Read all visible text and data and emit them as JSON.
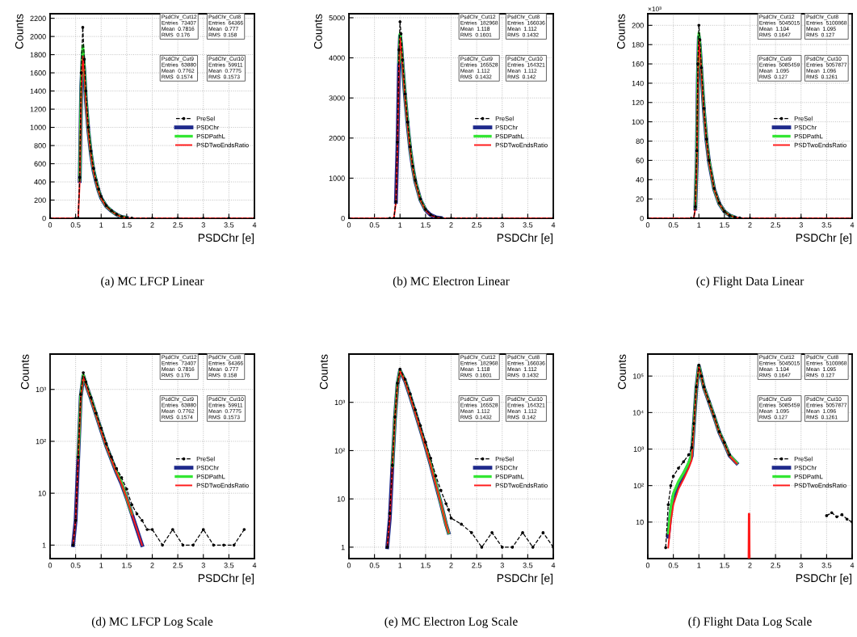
{
  "chart_data": [
    {
      "type": "line",
      "title": "(a) MC LFCP Linear",
      "xlabel": "PSDChr [e]",
      "ylabel": "Counts",
      "xlim": [
        0,
        4
      ],
      "xticks": [
        0,
        0.5,
        1,
        1.5,
        2,
        2.5,
        3,
        3.5,
        4
      ],
      "ylim": [
        0,
        2250
      ],
      "yticks": [
        0,
        200,
        400,
        600,
        800,
        1000,
        1200,
        1400,
        1600,
        1800,
        2000,
        2200
      ],
      "grid": true,
      "legend": "right",
      "annotations": [
        "PsdChr_Cut12\nEntries  73407\nMean  0.7816\nRMS  0.176",
        "PsdChr_Cut8\nEntries  64366\nMean  0.777\nRMS  0.158",
        "PsdChr_Cut9\nEntries  63880\nMean  0.7762\nRMS  0.1574",
        "PsdChr_Cut10\nEntries  59911\nMean  0.7775\nRMS  0.1573"
      ],
      "x": [
        0,
        0.5,
        0.55,
        0.58,
        0.61,
        0.64,
        0.67,
        0.7,
        0.75,
        0.8,
        0.85,
        0.9,
        0.95,
        1.0,
        1.1,
        1.2,
        1.3,
        1.4,
        1.5,
        1.6,
        2,
        2.5,
        3,
        3.5,
        4
      ],
      "series": [
        {
          "name": "PreSel",
          "color": "#000000",
          "marker": "circle",
          "line_style": "dashed",
          "values": [
            0,
            0,
            0,
            450,
            1600,
            2100,
            1750,
            1400,
            1000,
            740,
            550,
            420,
            320,
            240,
            140,
            85,
            45,
            18,
            6,
            1,
            0,
            0,
            0,
            0,
            0
          ]
        },
        {
          "name": "PSDChr",
          "color": "#1f2a8c",
          "values": [
            null,
            null,
            null,
            410,
            1450,
            1820,
            1620,
            1310,
            960,
            705,
            525,
            405,
            302,
            222,
            131,
            81,
            41,
            15,
            5,
            null,
            null,
            null,
            null,
            null,
            null
          ]
        },
        {
          "name": "PSDPathL",
          "color": "#33e633",
          "values": [
            null,
            null,
            null,
            420,
            1500,
            1900,
            1650,
            1330,
            970,
            715,
            530,
            410,
            305,
            225,
            133,
            82,
            42,
            16,
            5,
            null,
            null,
            null,
            null,
            null,
            null
          ]
        },
        {
          "name": "PSDTwoEndsRatio",
          "color": "#ff1a1a",
          "values": [
            0,
            0,
            0,
            400,
            1400,
            1780,
            1600,
            1300,
            950,
            700,
            520,
            400,
            300,
            220,
            130,
            80,
            40,
            15,
            5,
            0,
            0,
            0,
            0,
            0,
            0
          ]
        }
      ]
    },
    {
      "type": "line",
      "title": "(b) MC Electron Linear",
      "xlabel": "PSDChr [e]",
      "ylabel": "Counts",
      "xlim": [
        0,
        4
      ],
      "xticks": [
        0,
        0.5,
        1,
        1.5,
        2,
        2.5,
        3,
        3.5,
        4
      ],
      "ylim": [
        0,
        5100
      ],
      "yticks": [
        0,
        1000,
        2000,
        3000,
        4000,
        5000
      ],
      "grid": true,
      "legend": "right",
      "annotations": [
        "PsdChr_Cut12\nEntries  182968\nMean  1.118\nRMS  0.1601",
        "PsdChr_Cut8\nEntries  166036\nMean  1.112\nRMS  0.1432",
        "PsdChr_Cut9\nEntries  165528\nMean  1.112\nRMS  0.1432",
        "PsdChr_Cut10\nEntries  164321\nMean  1.112\nRMS  0.142"
      ],
      "x": [
        0,
        0.8,
        0.88,
        0.92,
        0.95,
        0.98,
        1.0,
        1.02,
        1.05,
        1.1,
        1.15,
        1.2,
        1.25,
        1.3,
        1.4,
        1.5,
        1.6,
        1.7,
        1.8,
        2,
        3,
        4
      ],
      "series": [
        {
          "name": "PreSel",
          "color": "#000000",
          "marker": "circle",
          "line_style": "dashed",
          "values": [
            0,
            0,
            0,
            420,
            1900,
            4200,
            4900,
            4600,
            3950,
            3100,
            2400,
            1780,
            1300,
            950,
            480,
            220,
            90,
            30,
            8,
            1,
            0,
            0
          ]
        },
        {
          "name": "PSDChr",
          "color": "#1f2a8c",
          "values": [
            null,
            null,
            null,
            405,
            1820,
            3850,
            4550,
            4350,
            3820,
            3020,
            2320,
            1710,
            1260,
            910,
            455,
            205,
            82,
            26,
            5,
            null,
            null,
            null
          ]
        },
        {
          "name": "PSDPathL",
          "color": "#33e633",
          "values": [
            null,
            null,
            null,
            null,
            null,
            3900,
            4600,
            4400,
            3850,
            3050,
            2350,
            1730,
            1270,
            920,
            460,
            210,
            null,
            null,
            null,
            null,
            null,
            null
          ]
        },
        {
          "name": "PSDTwoEndsRatio",
          "color": "#ff1a1a",
          "values": [
            0,
            0,
            0,
            400,
            1800,
            3800,
            4500,
            4300,
            3800,
            3000,
            2300,
            1700,
            1250,
            900,
            450,
            200,
            80,
            25,
            5,
            0,
            0,
            0
          ]
        }
      ]
    },
    {
      "type": "line",
      "title": "(c) Flight Data Linear",
      "xlabel": "PSDChr [e]",
      "ylabel": "Counts",
      "xlim": [
        0,
        4
      ],
      "xticks": [
        0,
        0.5,
        1,
        1.5,
        2,
        2.5,
        3,
        3.5,
        4
      ],
      "ylim": [
        0,
        212
      ],
      "yticks": [
        0,
        20,
        40,
        60,
        80,
        100,
        120,
        140,
        160,
        180,
        200
      ],
      "grid": true,
      "legend": "right",
      "annotations": [
        "PsdChr_Cut12\nEntries  5045015\nMean  1.104\nRMS  0.1647",
        "PsdChr_Cut8\nEntries  5100868\nMean  1.095\nRMS  0.127",
        "PsdChr_Cut9\nEntries  5085459\nMean  1.095\nRMS  0.127",
        "PsdChr_Cut10\nEntries  5057877\nMean  1.096\nRMS  0.1261",
        "×10³"
      ],
      "x": [
        0,
        0.85,
        0.9,
        0.93,
        0.96,
        0.98,
        1.0,
        1.02,
        1.05,
        1.1,
        1.15,
        1.2,
        1.3,
        1.4,
        1.5,
        1.6,
        1.7,
        1.8,
        2,
        3,
        4
      ],
      "series": [
        {
          "name": "PreSel",
          "color": "#000000",
          "marker": "circle",
          "line_style": "dashed",
          "values": [
            0,
            0,
            0,
            12,
            70,
            160,
            200,
            185,
            156,
            114,
            82,
            60,
            31,
            16,
            7,
            3,
            1,
            0.3,
            0,
            0,
            0
          ]
        },
        {
          "name": "PSDChr",
          "color": "#1f2a8c",
          "values": [
            null,
            null,
            null,
            10,
            62,
            145,
            188,
            177,
            151,
            111,
            80,
            58,
            30,
            15,
            7,
            3,
            1,
            null,
            null,
            null,
            null
          ]
        },
        {
          "name": "PSDPathL",
          "color": "#33e633",
          "values": [
            null,
            null,
            null,
            11,
            65,
            150,
            192,
            180,
            153,
            112,
            81,
            59,
            30,
            15,
            7,
            3,
            1,
            null,
            null,
            null,
            null
          ]
        },
        {
          "name": "PSDTwoEndsRatio",
          "color": "#ff1a1a",
          "values": [
            0,
            0,
            0,
            10,
            60,
            140,
            185,
            175,
            150,
            110,
            80,
            58,
            30,
            15,
            7,
            3,
            1,
            0.3,
            0,
            0,
            0
          ]
        }
      ]
    },
    {
      "type": "line",
      "title": "(d) MC LFCP Log Scale",
      "xlabel": "PSDChr [e]",
      "ylabel": "Counts",
      "log": "y",
      "xlim": [
        0,
        4
      ],
      "xticks": [
        0,
        0.5,
        1,
        1.5,
        2,
        2.5,
        3,
        3.5,
        4
      ],
      "ylim": [
        0.55,
        4800
      ],
      "yticks": [
        {
          "value": 1,
          "label": "1"
        },
        {
          "value": 10,
          "label": "10"
        },
        {
          "value": 100,
          "label": "10²"
        },
        {
          "value": 1000,
          "label": "10³"
        }
      ],
      "grid": true,
      "legend": "right",
      "annotations": [
        "PsdChr_Cut12\nEntries  73407\nMean  0.7816\nRMS  0.176",
        "PsdChr_Cut8\nEntries  64366\nMean  0.777\nRMS  0.158",
        "PsdChr_Cut9\nEntries  63880\nMean  0.7762\nRMS  0.1574",
        "PsdChr_Cut10\nEntries  59911\nMean  0.7775\nRMS  0.1573"
      ],
      "x": [
        0.45,
        0.5,
        0.55,
        0.6,
        0.65,
        0.7,
        0.8,
        0.9,
        1.0,
        1.1,
        1.2,
        1.3,
        1.4,
        1.5,
        1.6,
        1.7,
        1.8,
        1.9,
        2.0,
        2.2,
        2.4,
        2.6,
        2.8,
        3.0,
        3.2,
        3.4,
        3.6,
        3.8
      ],
      "series": [
        {
          "name": "PreSel",
          "color": "#000000",
          "marker": "circle",
          "line_style": "dashed",
          "values": [
            1,
            3,
            50,
            800,
            2100,
            1400,
            700,
            350,
            180,
            90,
            50,
            30,
            20,
            12,
            6,
            4,
            3,
            2,
            2,
            1,
            2,
            1,
            1,
            2,
            1,
            1,
            1,
            2
          ]
        },
        {
          "name": "PSDChr",
          "color": "#1f2a8c",
          "values": [
            1,
            3,
            46,
            720,
            1820,
            1270,
            660,
            325,
            162,
            81,
            45,
            25,
            15,
            8,
            4,
            2,
            1,
            null,
            null,
            null,
            null,
            null,
            null,
            null,
            null,
            null,
            null,
            null
          ]
        },
        {
          "name": "PSDPathL",
          "color": "#33e633",
          "values": [
            null,
            null,
            48,
            750,
            1900,
            1300,
            670,
            330,
            165,
            82,
            46,
            26,
            16,
            8,
            4,
            null,
            null,
            null,
            null,
            null,
            null,
            null,
            null,
            null,
            null,
            null,
            null,
            null
          ]
        },
        {
          "name": "PSDTwoEndsRatio",
          "color": "#ff1a1a",
          "values": [
            1,
            3,
            45,
            700,
            1800,
            1250,
            650,
            320,
            160,
            80,
            45,
            25,
            15,
            8,
            4,
            2,
            1,
            null,
            null,
            null,
            null,
            null,
            null,
            null,
            null,
            null,
            null,
            null
          ]
        }
      ]
    },
    {
      "type": "line",
      "title": "(e) MC Electron Log Scale",
      "xlabel": "PSDChr [e]",
      "ylabel": "Counts",
      "log": "y",
      "xlim": [
        0,
        4
      ],
      "xticks": [
        0,
        0.5,
        1,
        1.5,
        2,
        2.5,
        3,
        3.5,
        4
      ],
      "ylim": [
        0.58,
        10000
      ],
      "yticks": [
        {
          "value": 1,
          "label": "1"
        },
        {
          "value": 10,
          "label": "10"
        },
        {
          "value": 100,
          "label": "10²"
        },
        {
          "value": 1000,
          "label": "10³"
        }
      ],
      "grid": true,
      "legend": "right",
      "annotations": [
        "PsdChr_Cut12\nEntries  182968\nMean  1.118\nRMS  0.1601",
        "PsdChr_Cut8\nEntries  166036\nMean  1.112\nRMS  0.1432",
        "PsdChr_Cut9\nEntries  165528\nMean  1.112\nRMS  0.1432",
        "PsdChr_Cut10\nEntries  164321\nMean  1.112\nRMS  0.142"
      ],
      "x": [
        0.75,
        0.8,
        0.85,
        0.9,
        0.95,
        1.0,
        1.1,
        1.2,
        1.3,
        1.4,
        1.5,
        1.6,
        1.7,
        1.8,
        1.9,
        1.95,
        2.0,
        2.2,
        2.4,
        2.6,
        2.8,
        3.0,
        3.2,
        3.4,
        3.6,
        3.8,
        4.0
      ],
      "series": [
        {
          "name": "PreSel",
          "color": "#000000",
          "marker": "circle",
          "line_style": "dashed",
          "values": [
            1,
            5,
            50,
            500,
            2500,
            4900,
            3000,
            1500,
            700,
            330,
            150,
            70,
            30,
            15,
            8,
            6,
            4,
            3,
            2,
            1,
            2,
            1,
            1,
            2,
            1,
            2,
            1
          ]
        },
        {
          "name": "PSDChr",
          "color": "#1f2a8c",
          "values": [
            1,
            4,
            46,
            460,
            2350,
            4550,
            2750,
            1320,
            610,
            275,
            122,
            51,
            20,
            8,
            3,
            2,
            null,
            null,
            null,
            null,
            null,
            null,
            null,
            null,
            null,
            null,
            null
          ]
        },
        {
          "name": "PSDPathL",
          "color": "#33e633",
          "values": [
            null,
            null,
            47,
            470,
            2400,
            4600,
            2800,
            1350,
            620,
            280,
            125,
            52,
            21,
            8,
            3,
            2,
            null,
            null,
            null,
            null,
            null,
            null,
            null,
            null,
            null,
            null,
            null
          ]
        },
        {
          "name": "PSDTwoEndsRatio",
          "color": "#ff1a1a",
          "values": [
            1,
            4,
            45,
            450,
            2300,
            4500,
            2700,
            1300,
            600,
            270,
            120,
            50,
            20,
            8,
            3,
            2,
            null,
            null,
            null,
            null,
            null,
            null,
            null,
            null,
            null,
            null,
            null
          ]
        }
      ]
    },
    {
      "type": "line",
      "title": "(f) Flight Data Log Scale",
      "xlabel": "PSDChr [e]",
      "ylabel": "Counts",
      "log": "y",
      "xlim": [
        0,
        4
      ],
      "xticks": [
        0,
        0.5,
        1,
        1.5,
        2,
        2.5,
        3,
        3.5,
        4
      ],
      "ylim": [
        1,
        400000
      ],
      "yticks": [
        {
          "value": 10,
          "label": "10"
        },
        {
          "value": 100,
          "label": "10²"
        },
        {
          "value": 1000,
          "label": "10³"
        },
        {
          "value": 10000,
          "label": "10⁴"
        },
        {
          "value": 100000,
          "label": "10⁵"
        }
      ],
      "grid": true,
      "legend": "right",
      "annotations": [
        "PsdChr_Cut12\nEntries  5045015\nMean  1.104\nRMS  0.1647",
        "PsdChr_Cut8\nEntries  5100868\nMean  1.095\nRMS  0.127",
        "PsdChr_Cut9\nEntries  5085459\nMean  1.095\nRMS  0.127",
        "PsdChr_Cut10\nEntries  5057877\nMean  1.096\nRMS  0.1261"
      ],
      "x": [
        0.35,
        0.4,
        0.45,
        0.5,
        0.6,
        0.7,
        0.8,
        0.86,
        0.9,
        0.95,
        1.0,
        1.05,
        1.1,
        1.2,
        1.3,
        1.4,
        1.5,
        1.6,
        1.74,
        1.75,
        1.97,
        1.975,
        1.99,
        1.995,
        3.5,
        3.6,
        3.7,
        3.8,
        3.9,
        4.0
      ],
      "series": [
        {
          "name": "PreSel",
          "color": "#000000",
          "marker": "circle",
          "line_style": "dashed",
          "values": [
            2,
            30,
            100,
            180,
            300,
            450,
            700,
            1100,
            5000,
            50000,
            200000,
            100000,
            50000,
            20000,
            8000,
            3000,
            1500,
            700,
            null,
            null,
            null,
            null,
            null,
            null,
            15,
            18,
            14,
            16,
            12,
            10
          ]
        },
        {
          "name": "PSDChr",
          "color": "#1f2a8c",
          "values": [
            null,
            4,
            20,
            50,
            110,
            200,
            380,
            650,
            4200,
            46000,
            187000,
            96000,
            47500,
            19200,
            7600,
            2850,
            1420,
            660,
            410,
            null,
            null,
            null,
            null,
            null,
            null,
            null,
            null,
            null,
            null,
            null
          ]
        },
        {
          "name": "PSDPathL",
          "color": "#33e633",
          "values": [
            null,
            5,
            25,
            60,
            130,
            220,
            420,
            700,
            4500,
            47000,
            190000,
            97000,
            48000,
            19500,
            7700,
            2900,
            1450,
            680,
            420,
            null,
            null,
            null,
            null,
            null,
            null,
            null,
            null,
            null,
            null,
            null
          ]
        },
        {
          "name": "PSDTwoEndsRatio",
          "color": "#ff1a1a",
          "values": [
            null,
            2,
            10,
            30,
            80,
            150,
            300,
            500,
            4000,
            45000,
            185000,
            95000,
            47000,
            19000,
            7500,
            2800,
            1400,
            650,
            400,
            null,
            1,
            17,
            17,
            1,
            null,
            null,
            null,
            null,
            null,
            null
          ]
        }
      ]
    }
  ]
}
